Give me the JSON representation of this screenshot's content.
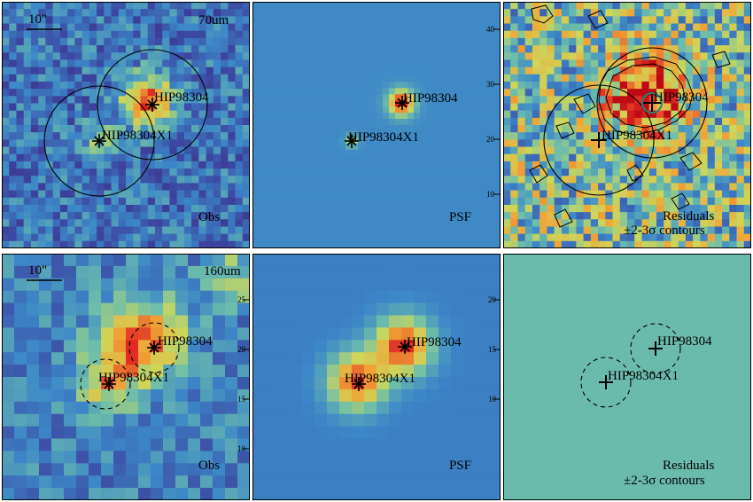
{
  "panels": [
    {
      "id": "obs70",
      "style": "obs",
      "scale_bar": "10\"",
      "band": "70um",
      "corner_label": "Obs",
      "sources": [
        {
          "name": "HIP98304",
          "marker": "star",
          "circle": "solid"
        },
        {
          "name": "HIP98304X1",
          "marker": "star",
          "circle": "solid"
        }
      ]
    },
    {
      "id": "psf70",
      "style": "psf",
      "corner_label": "PSF",
      "axis_ticks": [
        "10",
        "20",
        "30",
        "40"
      ],
      "sources": [
        {
          "name": "HIP98304",
          "marker": "star"
        },
        {
          "name": "HIP98304X1",
          "marker": "star"
        }
      ]
    },
    {
      "id": "res70",
      "style": "res",
      "corner_label_1": "Residuals",
      "corner_label_2": "±2-3σ contours",
      "sources": [
        {
          "name": "HIP98304",
          "marker": "plus",
          "circle": "solid"
        },
        {
          "name": "HIP98304X1",
          "marker": "plus",
          "circle": "solid"
        }
      ]
    },
    {
      "id": "obs160",
      "style": "obs2",
      "scale_bar": "10\"",
      "band": "160um",
      "corner_label": "Obs",
      "axis_ticks": [
        "10",
        "15",
        "20",
        "25"
      ],
      "sources": [
        {
          "name": "HIP98304",
          "marker": "star",
          "circle": "dashed"
        },
        {
          "name": "HIP98304X1",
          "marker": "star",
          "circle": "dashed"
        }
      ]
    },
    {
      "id": "psf160",
      "style": "psf2",
      "corner_label": "PSF",
      "axis_ticks": [
        "10",
        "15",
        "20"
      ],
      "sources": [
        {
          "name": "HIP98304",
          "marker": "star"
        },
        {
          "name": "HIP98304X1",
          "marker": "star"
        }
      ]
    },
    {
      "id": "res160",
      "style": "flat",
      "corner_label_1": "Residuals",
      "corner_label_2": "±2-3σ contours",
      "sources": [
        {
          "name": "HIP98304",
          "marker": "plus",
          "circle": "dashed"
        },
        {
          "name": "HIP98304X1",
          "marker": "plus",
          "circle": "dashed"
        }
      ]
    }
  ]
}
